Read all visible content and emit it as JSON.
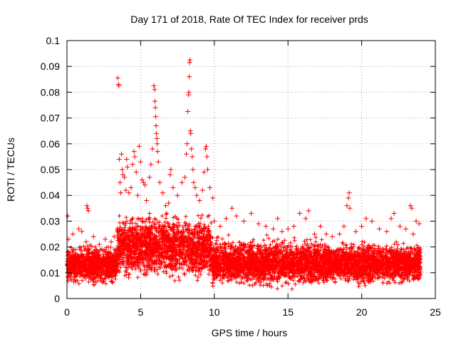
{
  "chart_data": {
    "type": "scatter",
    "title": "Day 171 of 2018, Rate Of TEC Index for receiver prds",
    "xlabel": "GPS time / hours",
    "ylabel": "ROTI / TECUs",
    "xlim": [
      0,
      25
    ],
    "ylim": [
      0,
      0.1
    ],
    "xticks": [
      "0",
      "5",
      "10",
      "15",
      "20",
      "25"
    ],
    "yticks": [
      "0",
      "0.01",
      "0.02",
      "0.03",
      "0.04",
      "0.05",
      "0.06",
      "0.07",
      "0.08",
      "0.09",
      "0.1"
    ],
    "xtick_values": [
      0,
      5,
      10,
      15,
      20,
      25
    ],
    "ytick_values": [
      0,
      0.01,
      0.02,
      0.03,
      0.04,
      0.05,
      0.06,
      0.07,
      0.08,
      0.09,
      0.1
    ],
    "grid": true,
    "marker": "plus",
    "series_color": "#ff0000",
    "background_envelope": [
      {
        "x_start": 0.0,
        "x_end": 3.4,
        "y_min": 0.004,
        "y_max": 0.022
      },
      {
        "x_start": 3.4,
        "x_end": 9.8,
        "y_min": 0.005,
        "y_max": 0.035
      },
      {
        "x_start": 9.8,
        "x_end": 17.6,
        "y_min": 0.003,
        "y_max": 0.025
      },
      {
        "x_start": 17.6,
        "x_end": 24.0,
        "y_min": 0.004,
        "y_max": 0.023
      }
    ],
    "series": [
      {
        "name": "ROTI",
        "points": [
          [
            0.05,
            0.032
          ],
          [
            0.1,
            0.023
          ],
          [
            0.4,
            0.025
          ],
          [
            0.8,
            0.027
          ],
          [
            1.0,
            0.026
          ],
          [
            1.3,
            0.022
          ],
          [
            1.35,
            0.036
          ],
          [
            1.4,
            0.035
          ],
          [
            1.45,
            0.034
          ],
          [
            1.8,
            0.024
          ],
          [
            2.2,
            0.021
          ],
          [
            2.6,
            0.023
          ],
          [
            3.0,
            0.022
          ],
          [
            3.2,
            0.024
          ],
          [
            3.45,
            0.0855
          ],
          [
            3.5,
            0.083
          ],
          [
            3.52,
            0.0825
          ],
          [
            3.55,
            0.054
          ],
          [
            3.6,
            0.045
          ],
          [
            3.65,
            0.041
          ],
          [
            3.7,
            0.056
          ],
          [
            3.75,
            0.05
          ],
          [
            3.8,
            0.048
          ],
          [
            3.9,
            0.047
          ],
          [
            4.0,
            0.042
          ],
          [
            4.05,
            0.054
          ],
          [
            4.1,
            0.051
          ],
          [
            4.2,
            0.041
          ],
          [
            4.35,
            0.043
          ],
          [
            4.45,
            0.052
          ],
          [
            4.55,
            0.057
          ],
          [
            4.6,
            0.055
          ],
          [
            4.7,
            0.049
          ],
          [
            4.8,
            0.04
          ],
          [
            4.9,
            0.059
          ],
          [
            5.0,
            0.053
          ],
          [
            5.1,
            0.046
          ],
          [
            5.2,
            0.045
          ],
          [
            5.3,
            0.044
          ],
          [
            5.4,
            0.038
          ],
          [
            5.6,
            0.047
          ],
          [
            5.7,
            0.052
          ],
          [
            5.8,
            0.058
          ],
          [
            5.9,
            0.0825
          ],
          [
            5.95,
            0.081
          ],
          [
            5.97,
            0.0765
          ],
          [
            6.0,
            0.074
          ],
          [
            6.02,
            0.0705
          ],
          [
            6.05,
            0.067
          ],
          [
            6.07,
            0.064
          ],
          [
            6.1,
            0.062
          ],
          [
            6.12,
            0.06
          ],
          [
            6.15,
            0.057
          ],
          [
            6.2,
            0.053
          ],
          [
            6.3,
            0.045
          ],
          [
            6.5,
            0.041
          ],
          [
            6.7,
            0.036
          ],
          [
            6.9,
            0.037
          ],
          [
            7.0,
            0.048
          ],
          [
            7.05,
            0.05
          ],
          [
            7.2,
            0.043
          ],
          [
            7.5,
            0.04
          ],
          [
            7.8,
            0.045
          ],
          [
            8.0,
            0.047
          ],
          [
            8.1,
            0.056
          ],
          [
            8.15,
            0.06
          ],
          [
            8.2,
            0.0725
          ],
          [
            8.25,
            0.079
          ],
          [
            8.27,
            0.08
          ],
          [
            8.3,
            0.086
          ],
          [
            8.32,
            0.0915
          ],
          [
            8.35,
            0.0925
          ],
          [
            8.37,
            0.065
          ],
          [
            8.4,
            0.064
          ],
          [
            8.45,
            0.058
          ],
          [
            8.5,
            0.055
          ],
          [
            8.55,
            0.05
          ],
          [
            8.6,
            0.045
          ],
          [
            8.7,
            0.043
          ],
          [
            8.8,
            0.04
          ],
          [
            9.0,
            0.038
          ],
          [
            9.2,
            0.042
          ],
          [
            9.3,
            0.049
          ],
          [
            9.4,
            0.058
          ],
          [
            9.45,
            0.059
          ],
          [
            9.5,
            0.055
          ],
          [
            9.55,
            0.05
          ],
          [
            9.7,
            0.043
          ],
          [
            9.9,
            0.039
          ],
          [
            10.0,
            0.03
          ],
          [
            10.4,
            0.028
          ],
          [
            10.8,
            0.031
          ],
          [
            11.2,
            0.035
          ],
          [
            11.5,
            0.032
          ],
          [
            12.0,
            0.03
          ],
          [
            12.5,
            0.033
          ],
          [
            13.0,
            0.029
          ],
          [
            13.5,
            0.028
          ],
          [
            14.0,
            0.027
          ],
          [
            14.3,
            0.031
          ],
          [
            14.6,
            0.026
          ],
          [
            15.0,
            0.027
          ],
          [
            15.4,
            0.028
          ],
          [
            15.8,
            0.033
          ],
          [
            16.2,
            0.031
          ],
          [
            16.4,
            0.034
          ],
          [
            16.8,
            0.025
          ],
          [
            17.2,
            0.028
          ],
          [
            17.6,
            0.025
          ],
          [
            18.0,
            0.024
          ],
          [
            18.5,
            0.025
          ],
          [
            18.8,
            0.028
          ],
          [
            19.0,
            0.036
          ],
          [
            19.1,
            0.039
          ],
          [
            19.15,
            0.041
          ],
          [
            19.2,
            0.035
          ],
          [
            19.6,
            0.026
          ],
          [
            20.0,
            0.028
          ],
          [
            20.3,
            0.031
          ],
          [
            20.7,
            0.03
          ],
          [
            21.2,
            0.027
          ],
          [
            21.7,
            0.026
          ],
          [
            22.0,
            0.031
          ],
          [
            22.2,
            0.033
          ],
          [
            22.6,
            0.028
          ],
          [
            23.0,
            0.027
          ],
          [
            23.3,
            0.036
          ],
          [
            23.4,
            0.035
          ],
          [
            23.5,
            0.025
          ],
          [
            23.7,
            0.03
          ],
          [
            23.9,
            0.029
          ]
        ]
      }
    ]
  }
}
